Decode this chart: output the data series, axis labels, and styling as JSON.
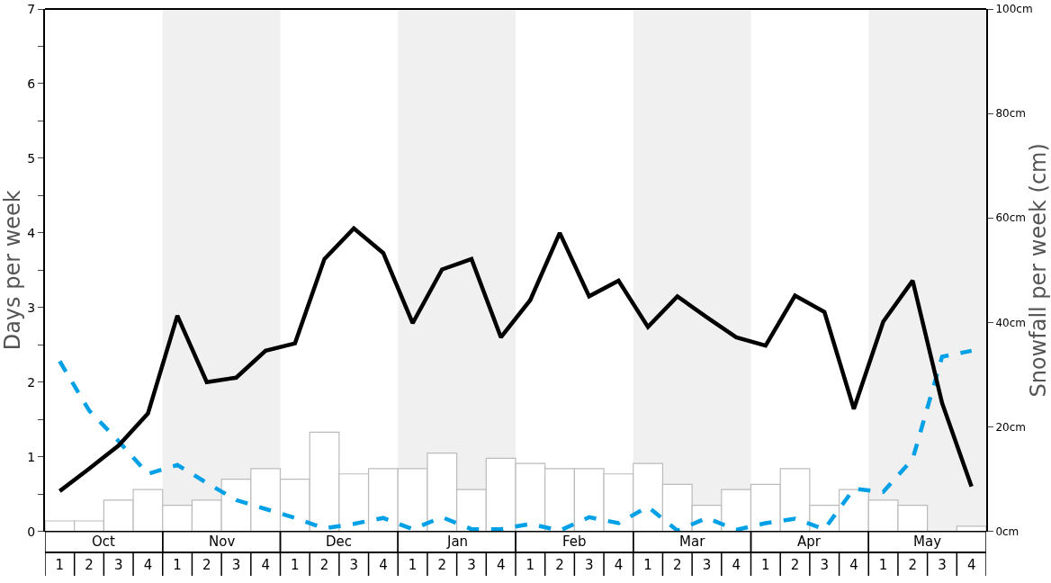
{
  "chart_data": {
    "type": "bar",
    "ylabel": "Days per week",
    "y2label": "Snowfall per week (cm)",
    "annotations": [
      "Oct",
      "Nov",
      "Dec",
      "Jan",
      "Feb",
      "Mar",
      "Apr",
      "May"
    ],
    "categories": [
      "1",
      "2",
      "3",
      "4",
      "1",
      "2",
      "3",
      "4",
      "1",
      "2",
      "3",
      "4",
      "1",
      "2",
      "3",
      "4",
      "1",
      "2",
      "3",
      "4",
      "1",
      "2",
      "3",
      "4",
      "1",
      "2",
      "3",
      "4",
      "1",
      "2",
      "3",
      "4"
    ],
    "ylim": [
      0,
      7
    ],
    "yticks": [
      0,
      {
        "value": 0.5,
        "label": null
      },
      1,
      {
        "value": 1.5,
        "label": null
      },
      2,
      {
        "value": 2.5,
        "label": null
      },
      3,
      {
        "value": 3.5,
        "label": null
      },
      4,
      {
        "value": 4.5,
        "label": null
      },
      5,
      {
        "value": 5.5,
        "label": null
      },
      6,
      {
        "value": 6.5,
        "label": null
      },
      7
    ],
    "y2lim": [
      0,
      100
    ],
    "y2ticks": [
      {
        "value": 0,
        "label": "0cm"
      },
      {
        "value": 20,
        "label": "20cm"
      },
      {
        "value": 40,
        "label": "40cm"
      },
      {
        "value": 60,
        "label": "60cm"
      },
      {
        "value": 80,
        "label": "80cm"
      },
      {
        "value": 100,
        "label": "100cm"
      }
    ],
    "grid": false,
    "series": [
      {
        "axis": "y2",
        "color": "#ffffff",
        "values": [
          2,
          2,
          6,
          8,
          5,
          6,
          10,
          12,
          10,
          19,
          11,
          12,
          12,
          15,
          8,
          14,
          13,
          12,
          12,
          11,
          13,
          9,
          5,
          8,
          9,
          12,
          5,
          8,
          6,
          5,
          0,
          1
        ]
      },
      {
        "type": "line",
        "color": "#00a0e6",
        "line_style": "dashed",
        "values": [
          2.28,
          1.62,
          1.21,
          0.77,
          0.89,
          0.65,
          0.42,
          0.3,
          0.18,
          0.04,
          0.1,
          0.18,
          0.03,
          0.19,
          0.03,
          0.03,
          0.1,
          0.01,
          0.19,
          0.11,
          0.33,
          0.01,
          0.18,
          0.02,
          0.11,
          0.17,
          0.03,
          0.57,
          0.53,
          0.97,
          2.34,
          2.42
        ]
      },
      {
        "type": "line",
        "color": "#000000",
        "line_style": "solid",
        "values": [
          0.54,
          0.84,
          1.15,
          1.58,
          2.89,
          2.0,
          2.06,
          2.42,
          2.52,
          3.65,
          4.06,
          3.73,
          2.79,
          3.51,
          3.65,
          2.6,
          3.1,
          4.0,
          3.15,
          3.36,
          2.74,
          3.15,
          2.87,
          2.6,
          2.49,
          3.16,
          2.94,
          1.64,
          2.81,
          3.36,
          1.72,
          0.6
        ]
      }
    ]
  }
}
